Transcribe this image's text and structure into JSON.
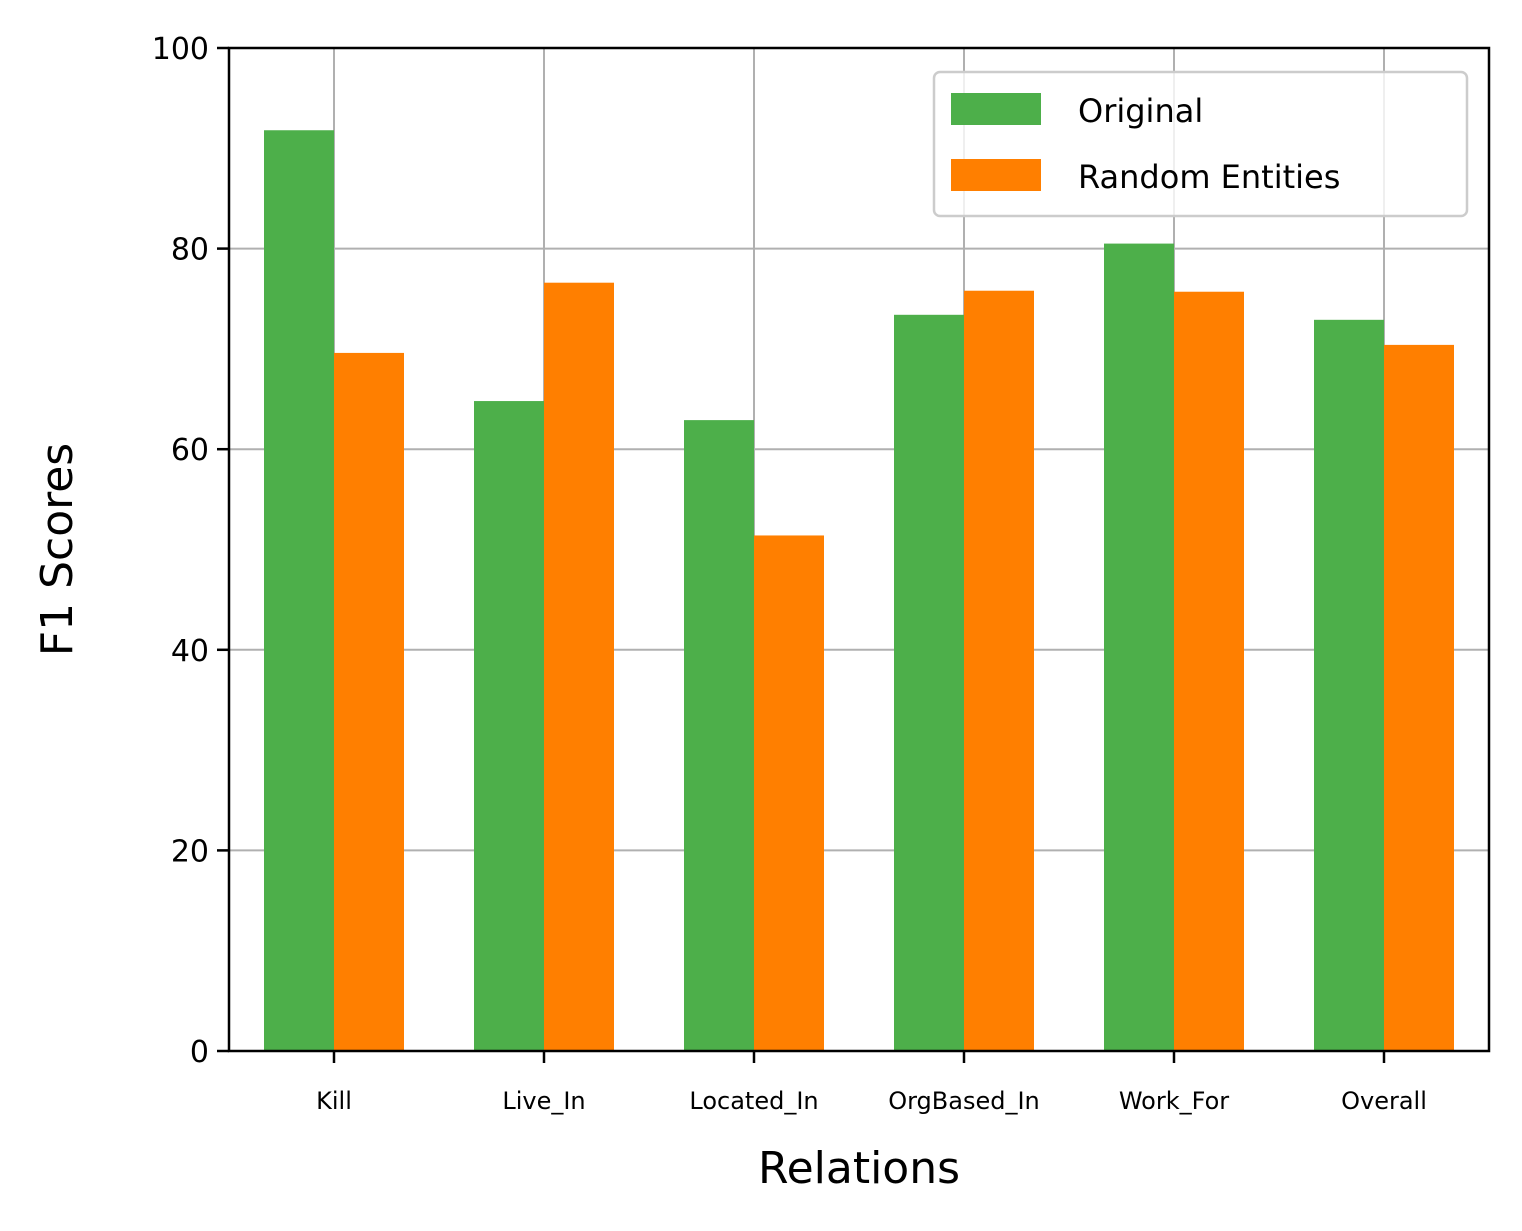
{
  "chart_data": {
    "type": "bar",
    "title": "",
    "xlabel": "Relations",
    "ylabel": "F1 Scores",
    "categories": [
      "Kill",
      "Live_In",
      "Located_In",
      "OrgBased_In",
      "Work_For",
      "Overall"
    ],
    "series": [
      {
        "name": "Original",
        "color": "#4daf4a",
        "values": [
          91.8,
          64.8,
          62.9,
          73.4,
          80.5,
          72.9
        ]
      },
      {
        "name": "Random Entities",
        "color": "#ff7f00",
        "values": [
          69.6,
          76.6,
          51.4,
          75.8,
          75.7,
          70.4
        ]
      }
    ],
    "ylim": [
      0,
      100
    ],
    "yticks": [
      0,
      20,
      40,
      60,
      80,
      100
    ],
    "grid": true,
    "legend_position": "top-right"
  }
}
